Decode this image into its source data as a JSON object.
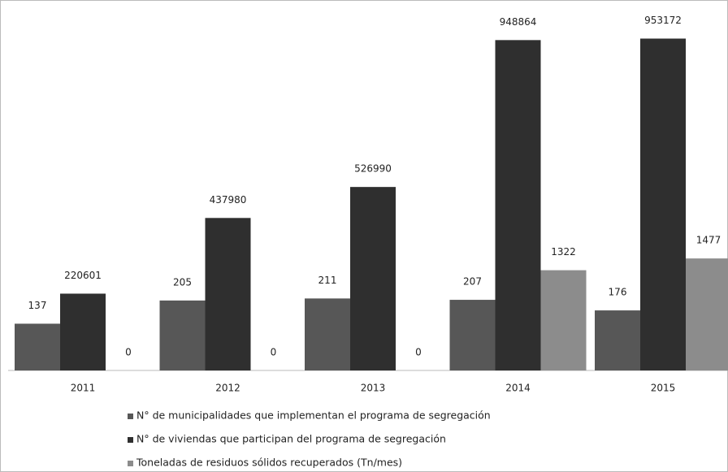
{
  "chart_data": {
    "type": "bar",
    "categories": [
      "2011",
      "2012",
      "2013",
      "2014",
      "2015"
    ],
    "series": [
      {
        "name": "N° de municipalidades que implementan el programa de segregación",
        "color": "#575757",
        "values": [
          137,
          205,
          211,
          207,
          176
        ],
        "ylim": [
          0,
          1000
        ]
      },
      {
        "name": "N° de viviendas que participan del programa de segregación",
        "color": "#2f2f2f",
        "values": [
          220601,
          437980,
          526990,
          948864,
          953172
        ],
        "ylim": [
          0,
          980000
        ]
      },
      {
        "name": "Toneladas de residuos sólidos recuperados (Tn/mes)",
        "color": "#8c8c8c",
        "values": [
          0,
          0,
          0,
          1322,
          1477
        ],
        "ylim": [
          0,
          4500
        ]
      }
    ],
    "legend": "bottom"
  }
}
